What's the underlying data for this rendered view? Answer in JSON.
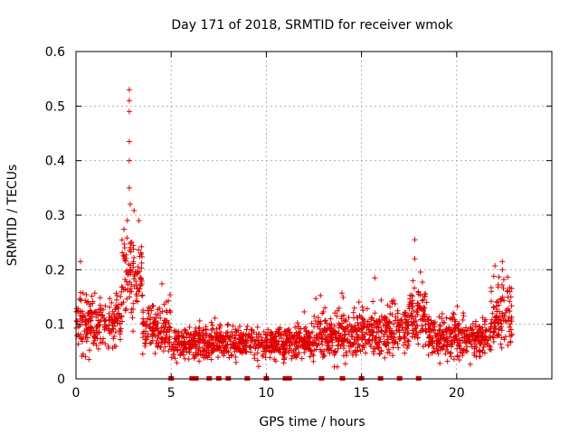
{
  "chart_data": {
    "type": "scatter",
    "title": "Day 171 of 2018, SRMTID for receiver wmok",
    "xlabel": "GPS time / hours",
    "ylabel": "SRMTID / TECUs",
    "xlim": [
      0,
      25
    ],
    "ylim": [
      0,
      0.6
    ],
    "xticks": [
      0,
      5,
      10,
      15,
      20
    ],
    "yticks": [
      0,
      0.1,
      0.2,
      0.3,
      0.4,
      0.5,
      0.6
    ],
    "xtick_labels": [
      "0",
      "5",
      "10",
      "15",
      "20"
    ],
    "ytick_labels": [
      "0",
      "0.1",
      "0.2",
      "0.3",
      "0.4",
      "0.5",
      "0.6"
    ],
    "grid": true,
    "marker": "+",
    "color": "#e00000",
    "series_profile": {
      "description": "SRMTID over time",
      "segments": [
        {
          "t_start": 0.0,
          "t_end": 2.4,
          "base": 0.1,
          "spread": 0.035
        },
        {
          "t_start": 2.4,
          "t_end": 3.5,
          "base": 0.19,
          "spread": 0.05
        },
        {
          "t_start": 3.5,
          "t_end": 5.0,
          "base": 0.09,
          "spread": 0.03
        },
        {
          "t_start": 5.0,
          "t_end": 12.5,
          "base": 0.065,
          "spread": 0.02
        },
        {
          "t_start": 12.5,
          "t_end": 15.5,
          "base": 0.08,
          "spread": 0.03
        },
        {
          "t_start": 15.5,
          "t_end": 17.5,
          "base": 0.085,
          "spread": 0.03
        },
        {
          "t_start": 17.5,
          "t_end": 18.5,
          "base": 0.12,
          "spread": 0.04
        },
        {
          "t_start": 18.5,
          "t_end": 21.8,
          "base": 0.075,
          "spread": 0.025
        },
        {
          "t_start": 21.8,
          "t_end": 22.9,
          "base": 0.11,
          "spread": 0.04
        }
      ],
      "peaks": [
        {
          "t": 2.8,
          "value": 0.53
        },
        {
          "t": 2.8,
          "value": 0.51
        },
        {
          "t": 2.8,
          "value": 0.49
        },
        {
          "t": 2.8,
          "value": 0.435
        },
        {
          "t": 2.8,
          "value": 0.4
        },
        {
          "t": 2.8,
          "value": 0.35
        },
        {
          "t": 2.85,
          "value": 0.32
        },
        {
          "t": 3.3,
          "value": 0.29
        },
        {
          "t": 17.8,
          "value": 0.255
        },
        {
          "t": 17.8,
          "value": 0.22
        },
        {
          "t": 22.4,
          "value": 0.215
        },
        {
          "t": 22.4,
          "value": 0.2
        },
        {
          "t": 15.7,
          "value": 0.185
        },
        {
          "t": 17.7,
          "value": 0.18
        }
      ]
    },
    "zero_markers_hours": [
      5.0,
      6.1,
      6.3,
      7.0,
      7.5,
      8.0,
      9.0,
      10.0,
      11.0,
      11.2,
      12.9,
      14.0,
      15.0,
      16.0,
      17.0,
      18.0
    ]
  }
}
